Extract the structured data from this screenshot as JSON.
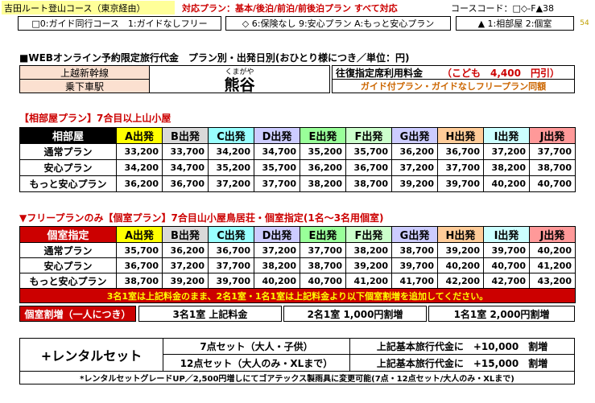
{
  "header": {
    "course_title": "吉田ルート登山コース（東京経由）",
    "plans": "対応プラン：基本/後泊/前泊/前後泊プラン すべて対応",
    "course_code": "コースコード：□◇-F▲38",
    "option1": "□0:ガイド同行コース　1:ガイドなしフリー",
    "option2": "◇ 6:保険なし 9:安心プラン A:もっと安心プラン",
    "option3": "▲ 1:相部屋 2:個室",
    "page_number": "54"
  },
  "price_section": {
    "title": "■WEBオンライン予約限定旅行代金　プラン別・出発日別(おひとり様につき／単位：円)",
    "line_label": "上越新幹線",
    "station_label": "乗下車駅",
    "station_kana": "くまがや",
    "station_name": "熊谷",
    "reserved_label": "往復指定席利用料金",
    "reserved_value": "（こども　4,400　円引）",
    "guide_note": "ガイド付プラン・ガイドなしフリープラン同額"
  },
  "shared_room": {
    "heading": "【相部屋プラン】7合目以上山小屋",
    "corner": "相部屋",
    "columns": [
      {
        "label": "A出発",
        "color": "#ffff00"
      },
      {
        "label": "B出発",
        "color": "#d9d9d9"
      },
      {
        "label": "C出発",
        "color": "#99ffff"
      },
      {
        "label": "D出発",
        "color": "#ccccff"
      },
      {
        "label": "E出発",
        "color": "#99ff99"
      },
      {
        "label": "F出発",
        "color": "#ccffcc"
      },
      {
        "label": "G出発",
        "color": "#ccccff"
      },
      {
        "label": "H出発",
        "color": "#ffcc99"
      },
      {
        "label": "I出発",
        "color": "#ccffff"
      },
      {
        "label": "J出発",
        "color": "#ff9999"
      }
    ],
    "rows": [
      {
        "label": "通常プラン",
        "values": [
          "33,200",
          "33,700",
          "34,200",
          "34,700",
          "35,200",
          "35,700",
          "36,200",
          "36,700",
          "37,200",
          "37,700"
        ]
      },
      {
        "label": "安心プラン",
        "values": [
          "34,200",
          "34,700",
          "35,200",
          "35,700",
          "36,200",
          "36,700",
          "37,200",
          "37,700",
          "38,200",
          "38,700"
        ]
      },
      {
        "label": "もっと安心プラン",
        "values": [
          "36,200",
          "36,700",
          "37,200",
          "37,700",
          "38,200",
          "38,700",
          "39,200",
          "39,700",
          "40,200",
          "40,700"
        ]
      }
    ]
  },
  "private_room": {
    "heading": "▼フリープランのみ【個室プラン】7合目山小屋鳥居荘・個室指定(1名～3名用個室)",
    "corner": "個室指定",
    "rows": [
      {
        "label": "通常プラン",
        "values": [
          "35,700",
          "36,200",
          "36,700",
          "37,200",
          "37,700",
          "38,200",
          "38,700",
          "39,200",
          "39,700",
          "40,200"
        ]
      },
      {
        "label": "安心プラン",
        "values": [
          "36,700",
          "37,200",
          "37,700",
          "38,200",
          "38,700",
          "39,200",
          "39,700",
          "40,200",
          "40,700",
          "41,200"
        ]
      },
      {
        "label": "もっと安心プラン",
        "values": [
          "38,700",
          "39,200",
          "39,700",
          "40,200",
          "40,700",
          "41,200",
          "41,700",
          "42,200",
          "42,700",
          "43,200"
        ]
      }
    ],
    "note": "3名1室は上記料金のまま、2名1室・1名1室は上記料金より以下個室割増を追加してください。",
    "surcharge_label": "個室割増（一人につき）",
    "surcharges": [
      "3名1室 上記料金",
      "2名1室 1,000円割増",
      "1名1室 2,000円割増"
    ]
  },
  "rental": {
    "label": "+レンタルセット",
    "items": [
      {
        "name": "7点セット（大人・子供）",
        "price": "上記基本旅行代金に　+10,000　割増"
      },
      {
        "name": "12点セット（大人のみ・XLまで）",
        "price": "上記基本旅行代金に　+15,000　割増"
      }
    ],
    "footnote": "*レンタルセットグレードUP／2,500円増しにてゴアテックス製雨具に変更可能(7点・12点セット/大人のみ・XLまで)"
  }
}
